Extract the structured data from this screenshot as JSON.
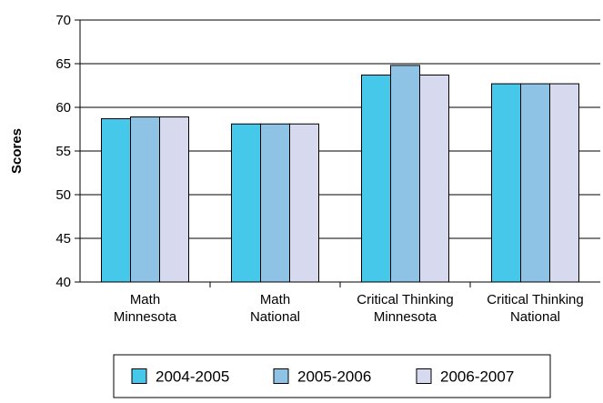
{
  "chart_data": {
    "type": "bar",
    "categories": [
      [
        "Math",
        "Minnesota"
      ],
      [
        "Math",
        "National"
      ],
      [
        "Critical Thinking",
        "Minnesota"
      ],
      [
        "Critical Thinking",
        "National"
      ]
    ],
    "series": [
      {
        "name": "2004-2005",
        "values": [
          58.7,
          58.1,
          63.7,
          62.7
        ],
        "color": "#45c8ea"
      },
      {
        "name": "2005-2006",
        "values": [
          58.9,
          58.1,
          64.8,
          62.7
        ],
        "color": "#8ec3e6"
      },
      {
        "name": "2006-2007",
        "values": [
          58.9,
          58.1,
          63.7,
          62.7
        ],
        "color": "#d7d9ef"
      }
    ],
    "title": "",
    "xlabel": "",
    "ylabel": "Scores",
    "ylim": [
      40,
      70
    ],
    "yticks": [
      40,
      45,
      50,
      55,
      60,
      65,
      70
    ],
    "grid": true,
    "legend_position": "bottom"
  }
}
